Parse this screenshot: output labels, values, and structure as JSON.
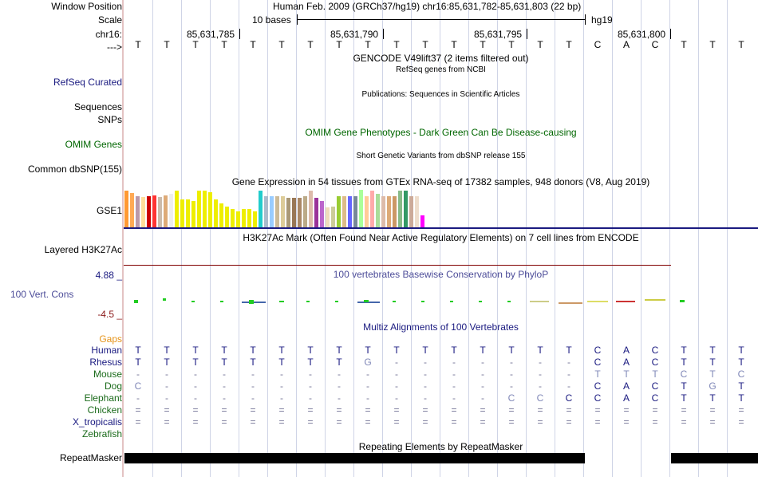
{
  "header": {
    "window_position_label": "Window Position",
    "window_position_text": "Human Feb. 2009 (GRCh37/hg19)   chr16:85,631,782-85,631,803 (22 bp)",
    "scale_label": "Scale",
    "scale_text": "10 bases",
    "assembly": "hg19",
    "chrom_label": "chr16:",
    "arrow_label": "--->",
    "positions": [
      "85,631,785",
      "85,631,790",
      "85,631,795",
      "85,631,800"
    ]
  },
  "sequence": [
    "T",
    "T",
    "T",
    "T",
    "T",
    "T",
    "T",
    "T",
    "T",
    "T",
    "T",
    "T",
    "T",
    "T",
    "T",
    "T",
    "C",
    "A",
    "C",
    "T",
    "T",
    "T"
  ],
  "tracks": {
    "gencode_title": "GENCODE V49lift37 (2 items filtered out)",
    "refseq_label": "RefSeq Curated",
    "refseq_title": "RefSeq genes from NCBI",
    "sequences_label": "Sequences",
    "pubs_title": "Publications: Sequences in Scientific Articles",
    "snps_label": "SNPs",
    "omim_title": "OMIM Gene Phenotypes - Dark Green Can Be Disease-causing",
    "omim_label": "OMIM Genes",
    "dbsnp_title": "Short Genetic Variants from dbSNP release 155",
    "dbsnp_label": "Common dbSNP(155)",
    "gtex_title": "Gene Expression in 54 tissues from GTEx RNA-seq of 17382 samples, 948 donors (V8, Aug 2019)",
    "gse1_label": "GSE1",
    "h3k27_title": "H3K27Ac Mark (Often Found Near Active Regulatory Elements) on 7 cell lines from ENCODE",
    "h3k27_label": "Layered H3K27Ac",
    "phylop_max": "4.88 _",
    "phylop_title": "100 vertebrates Basewise Conservation by PhyloP",
    "phylop_label": "100 Vert. Cons",
    "phylop_min": "-4.5 _",
    "multiz_title": "Multiz Alignments of 100 Vertebrates",
    "gaps_label": "Gaps",
    "repeat_title": "Repeating Elements by RepeatMasker",
    "repeat_label": "RepeatMasker"
  },
  "alignment": [
    {
      "species": "Human",
      "bases": [
        "T",
        "T",
        "T",
        "T",
        "T",
        "T",
        "T",
        "T",
        "T",
        "T",
        "T",
        "T",
        "T",
        "T",
        "T",
        "T",
        "C",
        "A",
        "C",
        "T",
        "T",
        "T"
      ]
    },
    {
      "species": "Rhesus",
      "bases": [
        "T",
        "T",
        "T",
        "T",
        "T",
        "T",
        "T",
        "T",
        "G",
        "-",
        "-",
        "-",
        "-",
        "-",
        "-",
        "-",
        "C",
        "A",
        "C",
        "T",
        "T",
        "T"
      ]
    },
    {
      "species": "Mouse",
      "bases": [
        "-",
        "-",
        "-",
        "-",
        "-",
        "-",
        "-",
        "-",
        "-",
        "-",
        "-",
        "-",
        "-",
        "-",
        "-",
        "-",
        "T",
        "T",
        "T",
        "C",
        "T",
        "C"
      ]
    },
    {
      "species": "Dog",
      "bases": [
        "C",
        "-",
        "-",
        "-",
        "-",
        "-",
        "-",
        "-",
        "-",
        "-",
        "-",
        "-",
        "-",
        "-",
        "-",
        "-",
        "C",
        "A",
        "C",
        "T",
        "G",
        "T"
      ]
    },
    {
      "species": "Elephant",
      "bases": [
        "-",
        "-",
        "-",
        "-",
        "-",
        "-",
        "-",
        "-",
        "-",
        "-",
        "-",
        "-",
        "-",
        "C",
        "C",
        "C",
        "C",
        "A",
        "C",
        "T",
        "T",
        "T"
      ]
    },
    {
      "species": "Chicken",
      "bases": [
        "=",
        "=",
        "=",
        "=",
        "=",
        "=",
        "=",
        "=",
        "=",
        "=",
        "=",
        "=",
        "=",
        "=",
        "=",
        "=",
        "=",
        "=",
        "=",
        "=",
        "=",
        "="
      ]
    },
    {
      "species": "X_tropicalis",
      "bases": [
        "=",
        "=",
        "=",
        "=",
        "=",
        "=",
        "=",
        "=",
        "=",
        "=",
        "=",
        "=",
        "=",
        "=",
        "=",
        "=",
        "=",
        "=",
        "=",
        "=",
        "=",
        "="
      ]
    },
    {
      "species": "Zebrafish",
      "bases": [
        "",
        "",
        "",
        "",
        "",
        "",
        "",
        "",
        "",
        "",
        "",
        "",
        "",
        "",
        "",
        "",
        "",
        "",
        "",
        "",
        "",
        ""
      ]
    }
  ],
  "gtex_bar_colors": [
    "#ff9933",
    "#ffaa55",
    "#bb99aa",
    "#ffdd99",
    "#cc0000",
    "#ff3333",
    "#ccbbaa",
    "#ddaa77",
    "#eeeeee",
    "#eeee00",
    "#eeee00",
    "#eeee00",
    "#eeee00",
    "#eeee00",
    "#eeee00",
    "#eeee00",
    "#eeee00",
    "#eeee00",
    "#eeee00",
    "#eeee00",
    "#eeee00",
    "#eeee00",
    "#eeee00",
    "#eeee00",
    "#22cccc",
    "#aabbcc",
    "#99ccff",
    "#ccbb99",
    "#ddcc99",
    "#aa9977",
    "#997755",
    "#aa8866",
    "#bbaa88",
    "#ddbbaa",
    "#993399",
    "#bb66cc",
    "#eeddbb",
    "#cccc99",
    "#99cc33",
    "#ddbb88",
    "#6666ff",
    "#778899",
    "#aaff99",
    "#ffcc99",
    "#ffaaaa",
    "#aadd99",
    "#ddbbaa",
    "#ddaa77",
    "#cc9966",
    "#88bb88",
    "#339966",
    "#ccaa99",
    "#eeddcc",
    "#ff00ff"
  ],
  "gtex_bar_values": [
    0.95,
    0.9,
    0.82,
    0.8,
    0.82,
    0.83,
    0.8,
    0.83,
    0.88,
    0.95,
    0.72,
    0.72,
    0.68,
    0.95,
    0.95,
    0.92,
    0.72,
    0.62,
    0.55,
    0.48,
    0.42,
    0.48,
    0.48,
    0.42,
    0.95,
    0.82,
    0.82,
    0.82,
    0.82,
    0.78,
    0.78,
    0.78,
    0.82,
    0.95,
    0.78,
    0.68,
    0.52,
    0.55,
    0.82,
    0.82,
    0.82,
    0.82,
    0.98,
    0.82,
    0.95,
    0.88,
    0.82,
    0.82,
    0.82,
    0.95,
    0.95,
    0.82,
    0.82,
    0.32
  ],
  "colors": {
    "navy": "#1a1a80",
    "omim_green": "#006600",
    "phylop_blue": "#4d4d99",
    "gaps_orange": "#e69419",
    "phylop_min": "#8b1a1a",
    "gtex_baseline": "#1a1a80",
    "h3k27_line": "#800000",
    "faded_base": "#8088b8"
  }
}
